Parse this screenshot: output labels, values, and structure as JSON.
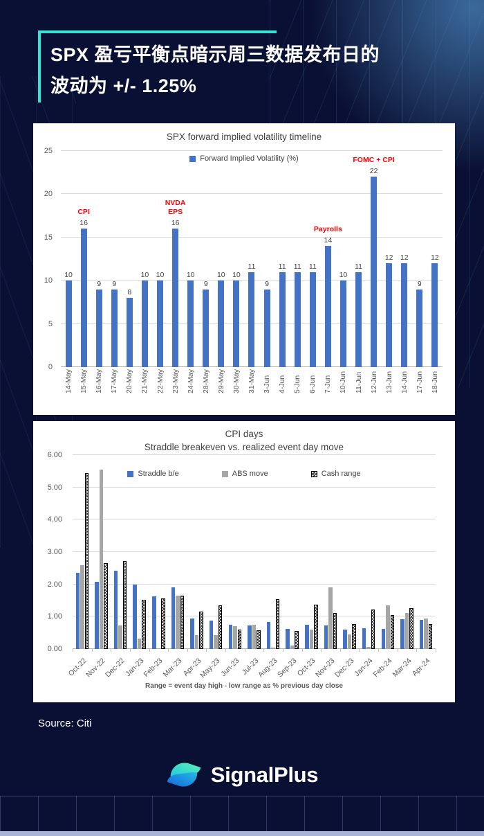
{
  "header": {
    "title_line1": "SPX 盈亏平衡点暗示周三数据发布日的",
    "title_line2": "波动为 +/- 1.25%"
  },
  "footer": {
    "source": "Source: Citi",
    "brand": "SignalPlus"
  },
  "colors": {
    "background": "#0A1033",
    "accent_teal": "#35E3D4",
    "bar_blue": "#4472C4",
    "bar_gray": "#A6A6A6",
    "annotation_red": "#FF0000",
    "bottom_strip": "#A9B3D8"
  },
  "chart_data": [
    {
      "type": "bar",
      "title": "SPX forward implied volatility timeline",
      "legend_label": "Forward Implied Volatility (%)",
      "legend_position": "top-center",
      "grid": true,
      "ylim": [
        0,
        25
      ],
      "yticks": [
        0,
        5,
        10,
        15,
        20,
        25
      ],
      "categories": [
        "14-May",
        "15-May",
        "16-May",
        "17-May",
        "20-May",
        "21-May",
        "22-May",
        "23-May",
        "24-May",
        "28-May",
        "29-May",
        "30-May",
        "31-May",
        "3-Jun",
        "4-Jun",
        "5-Jun",
        "6-Jun",
        "7-Jun",
        "10-Jun",
        "11-Jun",
        "12-Jun",
        "13-Jun",
        "14-Jun",
        "17-Jun",
        "18-Jun"
      ],
      "values": [
        10,
        16,
        9,
        9,
        8,
        10,
        10,
        16,
        10,
        9,
        10,
        10,
        11,
        9,
        11,
        11,
        11,
        14,
        10,
        11,
        22,
        12,
        12,
        9,
        12
      ],
      "annotations": [
        {
          "index": 1,
          "lines": [
            "CPI"
          ]
        },
        {
          "index": 7,
          "lines": [
            "NVDA",
            "EPS"
          ]
        },
        {
          "index": 17,
          "lines": [
            "Payrolls"
          ]
        },
        {
          "index": 20,
          "lines": [
            "FOMC + CPI"
          ]
        }
      ]
    },
    {
      "type": "bar",
      "title": "CPI days",
      "subtitle": "Straddle breakeven vs. realized event day move",
      "note": "Range = event day high - low range as % previous day close",
      "legend_position": "top-center",
      "grid": true,
      "ylim": [
        0,
        6
      ],
      "yticks": [
        "0.00",
        "1.00",
        "2.00",
        "3.00",
        "4.00",
        "5.00",
        "6.00"
      ],
      "categories": [
        "Oct-22",
        "Nov-22",
        "Dec-22",
        "Jan-23",
        "Feb-23",
        "Mar-23",
        "Apr-23",
        "May-23",
        "Jun-23",
        "Jul-23",
        "Aug-23",
        "Sep-23",
        "Oct-23",
        "Nov-23",
        "Dec-23",
        "Jan-24",
        "Feb-24",
        "Mar-24",
        "Apr-24"
      ],
      "series": [
        {
          "name": "Straddle b/e",
          "style": "blue",
          "values": [
            2.35,
            2.08,
            2.43,
            2.0,
            1.62,
            1.9,
            0.95,
            0.88,
            0.75,
            0.73,
            0.84,
            0.63,
            0.74,
            0.73,
            0.6,
            0.65,
            0.62,
            0.93,
            0.91
          ]
        },
        {
          "name": "ABS move",
          "style": "gray",
          "values": [
            2.6,
            5.55,
            0.73,
            0.33,
            0.02,
            1.65,
            0.42,
            0.43,
            0.7,
            0.74,
            0.05,
            0.11,
            0.61,
            1.9,
            0.45,
            0.06,
            1.35,
            1.11,
            0.94
          ]
        },
        {
          "name": "Cash range",
          "style": "pattern",
          "values": [
            5.45,
            2.65,
            2.72,
            1.52,
            1.57,
            1.65,
            1.15,
            1.35,
            0.61,
            0.57,
            1.55,
            0.56,
            1.38,
            1.12,
            0.77,
            1.23,
            1.04,
            1.26,
            0.77
          ]
        }
      ]
    }
  ]
}
